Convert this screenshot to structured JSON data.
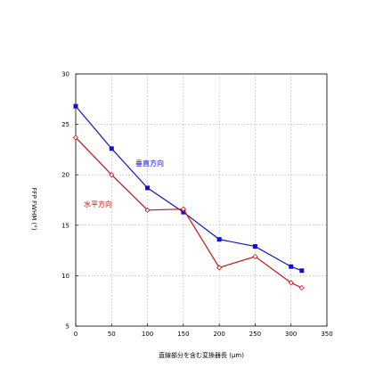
{
  "chart_data": {
    "type": "line",
    "xlabel": "直線部分を含む変換器長 (μm)",
    "ylabel": "FFP FWHM (°)",
    "xlim": [
      0,
      350
    ],
    "ylim": [
      5,
      30
    ],
    "xticks": [
      0,
      50,
      100,
      150,
      200,
      250,
      300,
      350
    ],
    "yticks": [
      5,
      10,
      15,
      20,
      25,
      30
    ],
    "grid": true,
    "series": [
      {
        "name": "垂直方向",
        "color": "#1010cc",
        "marker": "filled-square",
        "x": [
          0,
          50,
          100,
          150,
          200,
          250,
          300,
          315
        ],
        "y": [
          26.8,
          22.6,
          18.7,
          16.3,
          13.6,
          12.9,
          10.9,
          10.5
        ]
      },
      {
        "name": "水平方向",
        "color": "#cc1010",
        "marker": "open-diamond",
        "x": [
          0,
          50,
          100,
          150,
          200,
          250,
          300,
          315
        ],
        "y": [
          23.7,
          20.0,
          16.5,
          16.6,
          10.8,
          11.9,
          9.3,
          8.8
        ]
      }
    ]
  }
}
